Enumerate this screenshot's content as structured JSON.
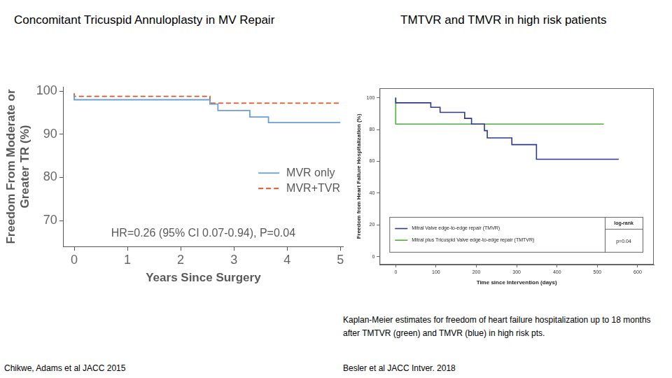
{
  "chart_data": [
    {
      "type": "step",
      "title": "Concomitant Tricuspid Annuloplasty in MV Repair",
      "source": "Chikwe, Adams et al JACC 2015",
      "x_label": "Years Since Surgery",
      "y_label": [
        "Freedom From Moderate or",
        "Greater TR (%)"
      ],
      "annotations": [
        "HR=0.26 (95% CI 0.07-0.94), P=0.04"
      ],
      "xlim": [
        -0.2,
        5.05
      ],
      "xticks": [
        0,
        1,
        2,
        3,
        4,
        5
      ],
      "ylim": [
        64,
        101
      ],
      "yticks": [
        70,
        80,
        90,
        100
      ],
      "grid": false,
      "legend": "lower right",
      "series": [
        {
          "name": "MVR only",
          "color": "#6a9fd4",
          "line_style": "solid",
          "x": [
            0,
            2.55,
            2.7,
            3.3,
            3.65,
            4.0,
            5.0
          ],
          "values": [
            99,
            98,
            97,
            95.5,
            94,
            92.7,
            92.7
          ]
        },
        {
          "name": "MVR+TVR",
          "color": "#d9552b",
          "line_style": "dashed",
          "x": [
            0,
            2.55,
            4.3,
            5.0
          ],
          "values": [
            99.5,
            98.8,
            97.2,
            97.2
          ]
        }
      ]
    },
    {
      "type": "step",
      "title": "TMTVR and TMVR in high risk patients",
      "source": "Besler et al JACC Intver. 2018",
      "caption": "Kaplan-Meier estimates for freedom of heart failure hospitalization up to 18 months after TMTVR (green) and TMVR (blue) in high risk pts.",
      "x_label": "Time since Intervention (days)",
      "y_label": "Freedom from Heart Failure Hospitalization (%)",
      "annotations": [
        "log-rank",
        "p=0.04"
      ],
      "xlim": [
        -40,
        640
      ],
      "xticks": [
        0,
        100,
        200,
        300,
        400,
        500,
        600
      ],
      "ylim": [
        -5,
        106
      ],
      "yticks": [
        0,
        20,
        40,
        60,
        80,
        100
      ],
      "grid": false,
      "legend": "bottom",
      "series": [
        {
          "name": "Mitral Valve edge-to-edge repair (TMVR)",
          "color": "#2e3a87",
          "line_style": "solid",
          "x": [
            0,
            87,
            110,
            171,
            188,
            220,
            227,
            288,
            349,
            370,
            553
          ],
          "values": [
            100,
            96.8,
            94,
            90.8,
            87,
            83.4,
            79.3,
            74.7,
            70.5,
            61.3,
            61.3
          ]
        },
        {
          "name": "Mitral plus Tricuspid Valve edge-to-edge repair (TMTVR)",
          "color": "#4caf3a",
          "line_style": "solid",
          "x": [
            0,
            370,
            516
          ],
          "values": [
            100,
            83.4,
            83.4
          ]
        }
      ]
    }
  ]
}
